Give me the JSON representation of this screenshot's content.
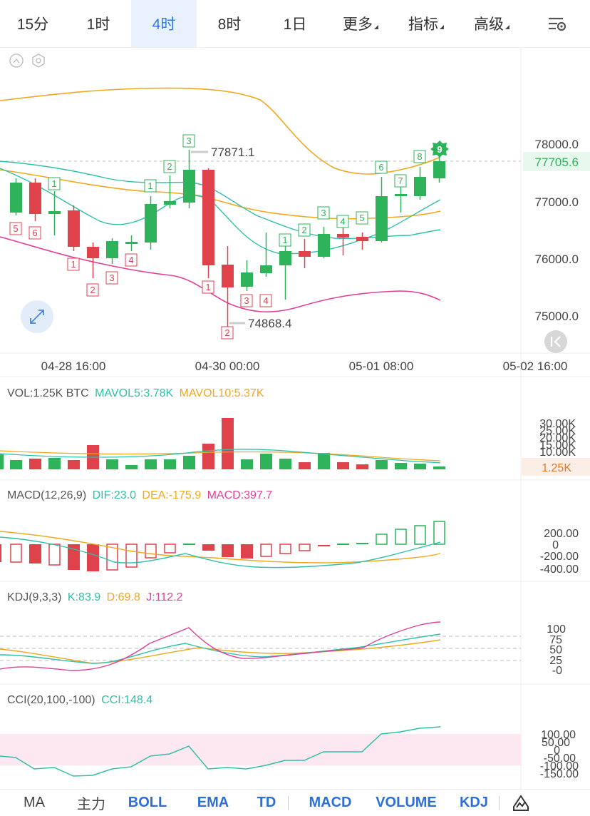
{
  "tabs": [
    {
      "label": "15分",
      "active": false
    },
    {
      "label": "1时",
      "active": false
    },
    {
      "label": "4时",
      "active": true
    },
    {
      "label": "8时",
      "active": false
    },
    {
      "label": "1日",
      "active": false
    },
    {
      "label": "更多",
      "active": false,
      "dropdown": true
    },
    {
      "label": "指标",
      "active": false,
      "dropdown": true
    },
    {
      "label": "高级",
      "active": false,
      "dropdown": true
    }
  ],
  "settings_icon": "chart-settings-icon",
  "colors": {
    "up": "#2eb35a",
    "down": "#e0424c",
    "ma_orange": "#f0a81e",
    "ma_teal": "#2ec1a8",
    "ma_pink": "#e0429a",
    "accent": "#2c7be5"
  },
  "main": {
    "price_axis": [
      "78000.0",
      "77000.0",
      "76000.0",
      "75000.0"
    ],
    "current_price": "77705.6",
    "high_label": "77871.1",
    "low_label": "74868.4",
    "time_axis": [
      "04-28 16:00",
      "04-30 00:00",
      "05-01 08:00",
      "05-02 16:00"
    ],
    "td_counts": [
      "5",
      "6",
      "1",
      "1",
      "2",
      "3",
      "4",
      "1",
      "2",
      "3",
      "1",
      "2",
      "3",
      "4",
      "1",
      "2",
      "3",
      "4",
      "5",
      "6",
      "7",
      "8",
      "9"
    ]
  },
  "volume": {
    "label": "VOL:1.25K BTC",
    "mavol5": "MAVOL5:3.78K",
    "mavol10": "MAVOL10:5.37K",
    "axis": [
      "30.00K",
      "25.00K",
      "20.00K",
      "15.00K",
      "10.00K"
    ],
    "current": "1.25K"
  },
  "macd": {
    "label": "MACD(12,26,9)",
    "dif": "DIF:23.0",
    "dea": "DEA:-175.9",
    "macd": "MACD:397.7",
    "axis": [
      "200.00",
      "0",
      "-200.00",
      "-400.00"
    ]
  },
  "kdj": {
    "label": "KDJ(9,3,3)",
    "k": "K:83.9",
    "d": "D:69.8",
    "j": "J:112.2",
    "axis": [
      "100",
      "75",
      "50",
      "25",
      "-0"
    ]
  },
  "cci": {
    "label": "CCI(20,100,-100)",
    "cci": "CCI:148.4",
    "axis": [
      "100.00",
      "50.00",
      "0",
      "-50.00",
      "-100.00",
      "-150.00"
    ]
  },
  "bottom_tabs": [
    {
      "label": "MA",
      "bold": false
    },
    {
      "label": "主力",
      "bold": false
    },
    {
      "label": "BOLL",
      "bold": true
    },
    {
      "label": "EMA",
      "bold": true
    },
    {
      "label": "TD",
      "bold": true
    },
    {
      "label": "MACD",
      "bold": true
    },
    {
      "label": "VOLUME",
      "bold": true
    },
    {
      "label": "KDJ",
      "bold": true
    }
  ],
  "draw_icon": "draw-tool-icon"
}
